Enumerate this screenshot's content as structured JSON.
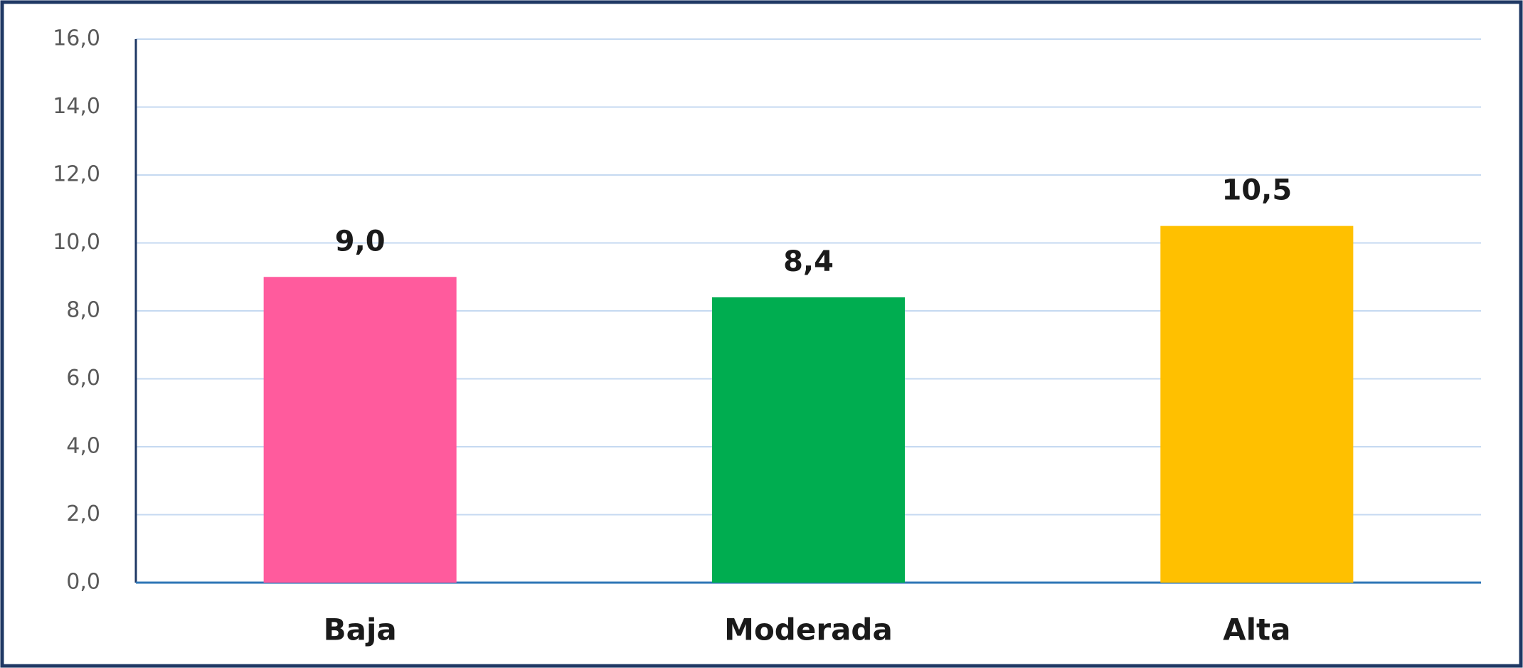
{
  "chart_data": {
    "type": "bar",
    "categories": [
      "Baja",
      "Moderada",
      "Alta"
    ],
    "values": [
      9.0,
      8.4,
      10.5
    ],
    "value_labels": [
      "9,0",
      "8,4",
      "10,5"
    ],
    "colors": [
      "#ff5b9d",
      "#00ad50",
      "#ffc000"
    ],
    "ylim": [
      0,
      16
    ],
    "yticks": [
      {
        "value": 0,
        "label": "0,0"
      },
      {
        "value": 2,
        "label": "2,0"
      },
      {
        "value": 4,
        "label": "4,0"
      },
      {
        "value": 6,
        "label": "6,0"
      },
      {
        "value": 8,
        "label": "8,0"
      },
      {
        "value": 10,
        "label": "10,0"
      },
      {
        "value": 12,
        "label": "12,0"
      },
      {
        "value": 14,
        "label": "14,0"
      },
      {
        "value": 16,
        "label": "16,0"
      }
    ],
    "grid": true
  }
}
